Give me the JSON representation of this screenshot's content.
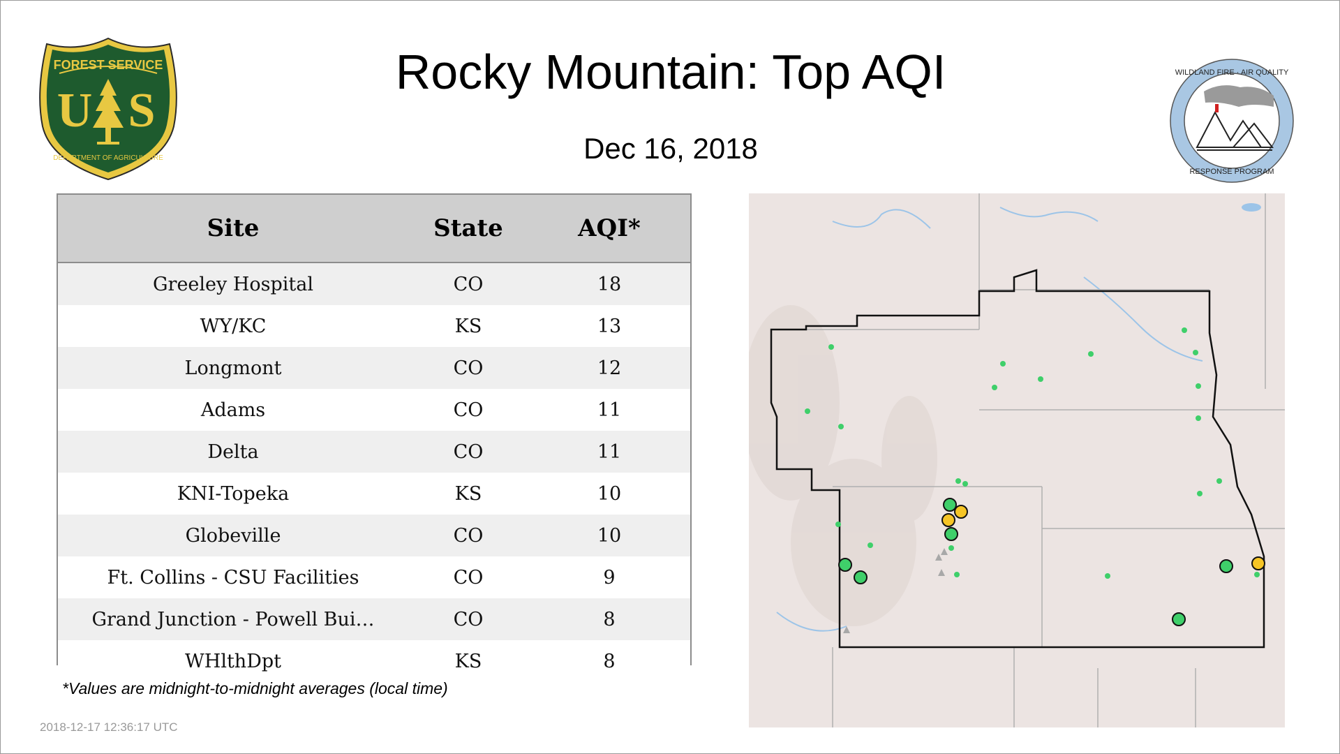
{
  "header": {
    "title": "Rocky Mountain: Top AQI",
    "date": "Dec 16, 2018"
  },
  "logos": {
    "left": {
      "icon": "forest-service-shield-icon",
      "top_text": "FOREST SERVICE",
      "letters": [
        "U",
        "S"
      ],
      "bottom_text": "DEPARTMENT OF AGRICULTURE",
      "colors": {
        "shield": "#1e5b2e",
        "gold": "#e8c842"
      }
    },
    "right": {
      "icon": "wildland-fire-air-quality-seal-icon",
      "top_text": "WILDLAND FIRE · AIR QUALITY",
      "bottom_text": "RESPONSE PROGRAM",
      "colors": {
        "ring": "#a9c7e3"
      }
    }
  },
  "table": {
    "columns": [
      "Site",
      "State",
      "AQI*"
    ],
    "rows": [
      {
        "site": "Greeley Hospital",
        "state": "CO",
        "aqi": "18"
      },
      {
        "site": "WY/KC",
        "state": "KS",
        "aqi": "13"
      },
      {
        "site": "Longmont",
        "state": "CO",
        "aqi": "12"
      },
      {
        "site": "Adams",
        "state": "CO",
        "aqi": "11"
      },
      {
        "site": "Delta",
        "state": "CO",
        "aqi": "11"
      },
      {
        "site": "KNI-Topeka",
        "state": "KS",
        "aqi": "10"
      },
      {
        "site": "Globeville",
        "state": "CO",
        "aqi": "10"
      },
      {
        "site": "Ft. Collins - CSU Facilities",
        "state": "CO",
        "aqi": "9"
      },
      {
        "site": "Grand Junction - Powell Bui…",
        "state": "CO",
        "aqi": "8"
      },
      {
        "site": "WHlthDpt",
        "state": "KS",
        "aqi": "8"
      }
    ]
  },
  "footnote": "*Values are midnight-to-midnight averages (local time)",
  "timestamp": "2018-12-17 12:36:17 UTC",
  "map": {
    "icon": "rocky-mountain-region-map",
    "colors": {
      "land": "#ece4e2",
      "water": "#9cc4e8",
      "state_lines": "#b0b0b0",
      "region_outline": "#111111",
      "aqi_good": "#3fcf6a",
      "aqi_moderate": "#f6c526",
      "small_site": "#3fcf6a",
      "missing": "#a8a8a8"
    }
  }
}
